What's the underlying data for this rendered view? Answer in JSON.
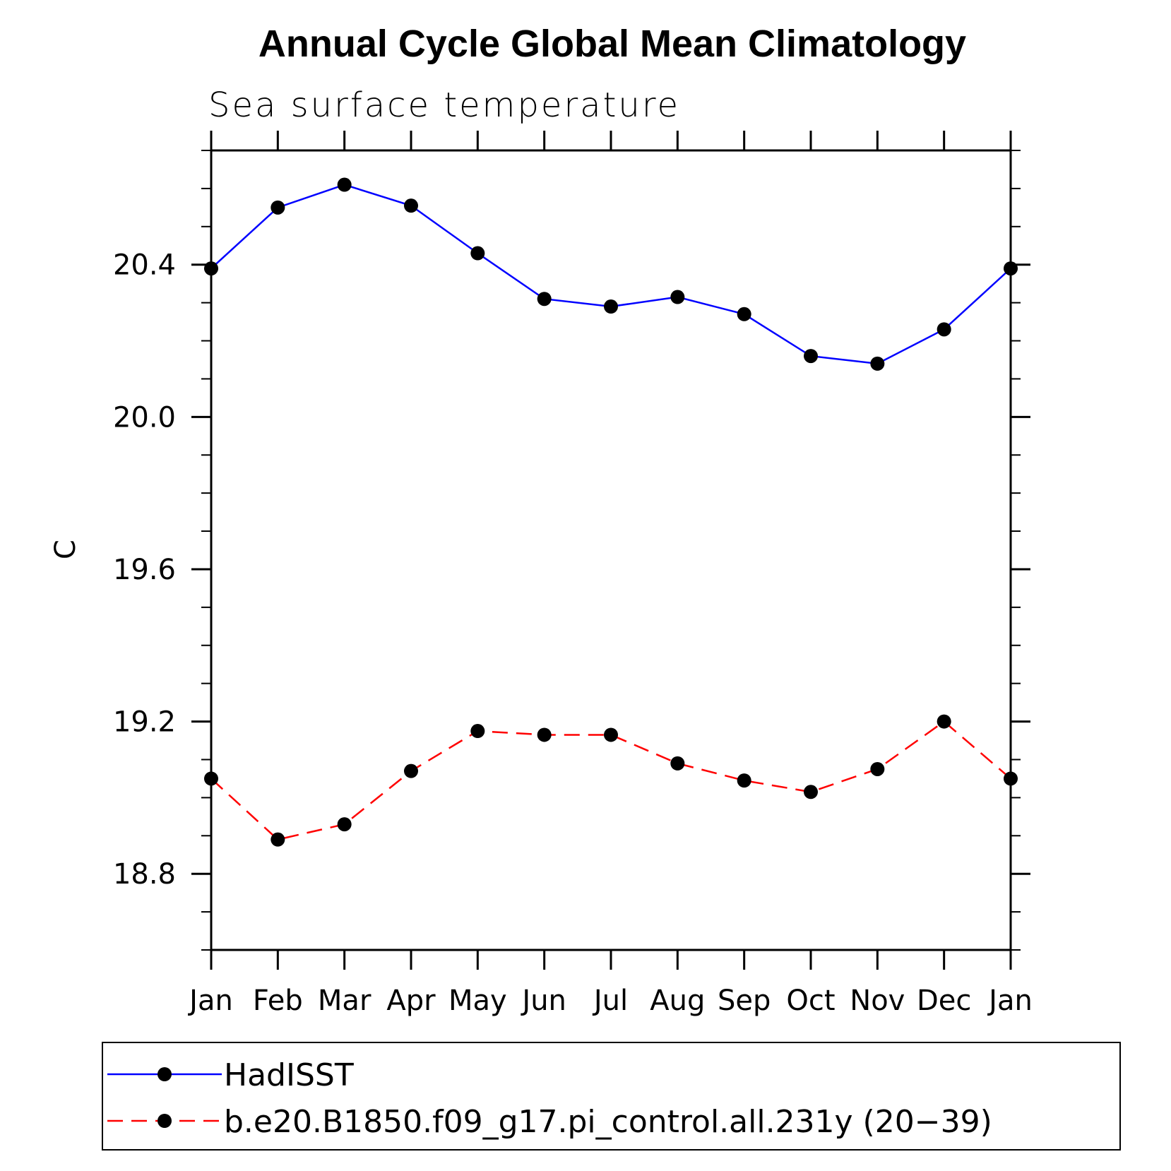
{
  "chart_data": {
    "type": "line",
    "title": "Annual Cycle Global Mean Climatology",
    "subtitle": "Sea surface temperature",
    "xlabel": "",
    "ylabel": "C",
    "categories": [
      "Jan",
      "Feb",
      "Mar",
      "Apr",
      "May",
      "Jun",
      "Jul",
      "Aug",
      "Sep",
      "Oct",
      "Nov",
      "Dec",
      "Jan"
    ],
    "ylim": [
      18.6,
      20.7
    ],
    "yticks_major": [
      18.8,
      19.2,
      19.6,
      20.0,
      20.4
    ],
    "ytick_labels": [
      "18.8",
      "19.2",
      "19.6",
      "20.0",
      "20.4"
    ],
    "yticks_minor_step": 0.1,
    "grid": false,
    "legend_position": "bottom",
    "series": [
      {
        "name": "HadISST",
        "color": "#0000ff",
        "dash": "solid",
        "marker": "circle",
        "values": [
          20.39,
          20.55,
          20.61,
          20.555,
          20.43,
          20.31,
          20.29,
          20.315,
          20.27,
          20.16,
          20.14,
          20.23,
          20.39
        ]
      },
      {
        "name": "b.e20.B1850.f09_g17.pi_control.all.231y (20−39)",
        "color": "#ff0000",
        "dash": "dashed",
        "marker": "circle",
        "values": [
          19.05,
          18.89,
          18.93,
          19.07,
          19.175,
          19.165,
          19.165,
          19.09,
          19.045,
          19.015,
          19.075,
          19.2,
          19.05
        ]
      }
    ]
  }
}
